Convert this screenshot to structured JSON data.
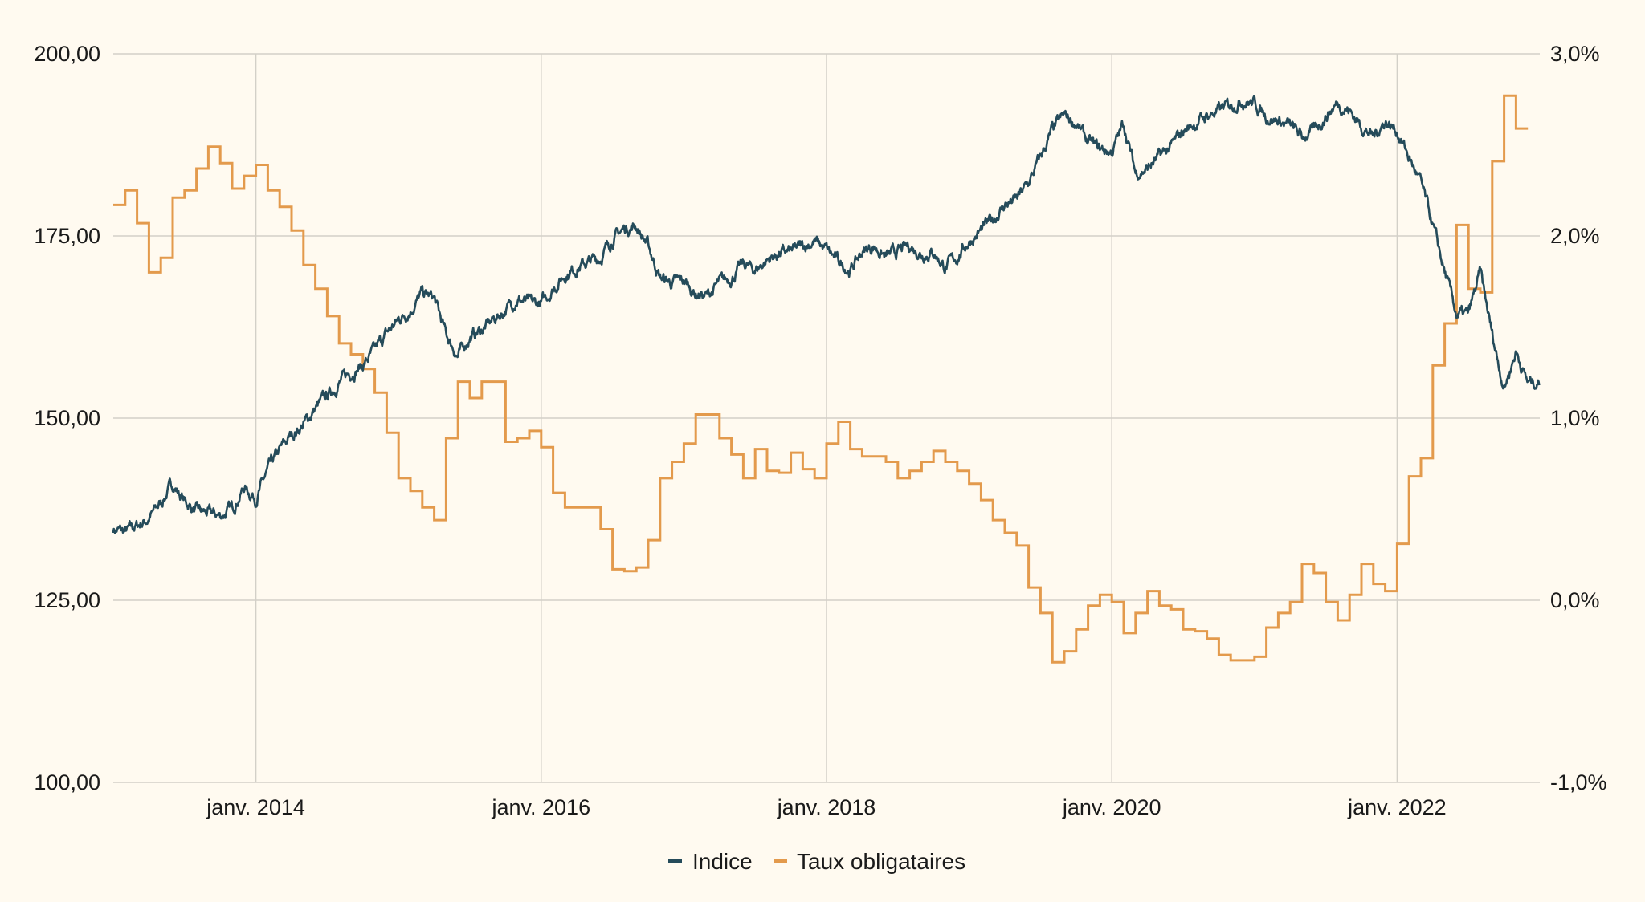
{
  "chart_data": {
    "type": "line",
    "title": "",
    "xlabel": "",
    "ylabel": "",
    "x_range": [
      "2013-01",
      "2023-01"
    ],
    "x_ticks": [
      {
        "date": "2014-01",
        "label": "janv. 2014"
      },
      {
        "date": "2016-01",
        "label": "janv. 2016"
      },
      {
        "date": "2018-01",
        "label": "janv. 2018"
      },
      {
        "date": "2020-01",
        "label": "janv. 2020"
      },
      {
        "date": "2022-01",
        "label": "janv. 2022"
      }
    ],
    "y_left": {
      "range": [
        100,
        200
      ],
      "ticks": [
        100,
        125,
        150,
        175,
        200
      ],
      "tick_labels": [
        "100,00",
        "125,00",
        "150,00",
        "175,00",
        "200,00"
      ]
    },
    "y_right": {
      "range": [
        -1,
        3
      ],
      "ticks": [
        -1,
        0,
        1,
        2,
        3
      ],
      "tick_labels": [
        "-1,0%",
        "0,0%",
        "1,0%",
        "2,0%",
        "3,0%"
      ]
    },
    "grid": true,
    "legend_position": "bottom-center",
    "background_color": "#fffaf0",
    "series": [
      {
        "name": "Indice",
        "axis": "left",
        "color": "#254b5a",
        "style": "line",
        "x": [
          "2013-01",
          "2013-02",
          "2013-03",
          "2013-04",
          "2013-05",
          "2013-06",
          "2013-07",
          "2013-08",
          "2013-09",
          "2013-10",
          "2013-11",
          "2013-12",
          "2014-01",
          "2014-02",
          "2014-03",
          "2014-04",
          "2014-05",
          "2014-06",
          "2014-07",
          "2014-08",
          "2014-09",
          "2014-10",
          "2014-11",
          "2014-12",
          "2015-01",
          "2015-02",
          "2015-03",
          "2015-04",
          "2015-05",
          "2015-06",
          "2015-07",
          "2015-08",
          "2015-09",
          "2015-10",
          "2015-11",
          "2015-12",
          "2016-01",
          "2016-02",
          "2016-03",
          "2016-04",
          "2016-05",
          "2016-06",
          "2016-07",
          "2016-08",
          "2016-09",
          "2016-10",
          "2016-11",
          "2016-12",
          "2017-01",
          "2017-02",
          "2017-03",
          "2017-04",
          "2017-05",
          "2017-06",
          "2017-07",
          "2017-08",
          "2017-09",
          "2017-10",
          "2017-11",
          "2017-12",
          "2018-01",
          "2018-02",
          "2018-03",
          "2018-04",
          "2018-05",
          "2018-06",
          "2018-07",
          "2018-08",
          "2018-09",
          "2018-10",
          "2018-11",
          "2018-12",
          "2019-01",
          "2019-02",
          "2019-03",
          "2019-04",
          "2019-05",
          "2019-06",
          "2019-07",
          "2019-08",
          "2019-09",
          "2019-10",
          "2019-11",
          "2019-12",
          "2020-01",
          "2020-02",
          "2020-03",
          "2020-04",
          "2020-05",
          "2020-06",
          "2020-07",
          "2020-08",
          "2020-09",
          "2020-10",
          "2020-11",
          "2020-12",
          "2021-01",
          "2021-02",
          "2021-03",
          "2021-04",
          "2021-05",
          "2021-06",
          "2021-07",
          "2021-08",
          "2021-09",
          "2021-10",
          "2021-11",
          "2021-12",
          "2022-01",
          "2022-02",
          "2022-03",
          "2022-04",
          "2022-05",
          "2022-06",
          "2022-07",
          "2022-08",
          "2022-09",
          "2022-10",
          "2022-11",
          "2022-12"
        ],
        "values": [
          134.8,
          134.3,
          135.2,
          136.2,
          138.4,
          141.0,
          138.6,
          137.2,
          136.9,
          136.6,
          137.6,
          140.5,
          139.0,
          142.7,
          145.5,
          147.7,
          149.1,
          151.3,
          153.0,
          154.9,
          156.3,
          157.3,
          159.2,
          161.6,
          163.5,
          164.9,
          167.1,
          166.4,
          161.4,
          158.5,
          161.1,
          162.1,
          163.5,
          164.9,
          166.4,
          165.7,
          165.7,
          167.8,
          169.7,
          170.7,
          171.4,
          172.1,
          174.6,
          176.0,
          176.4,
          173.6,
          169.3,
          168.5,
          168.8,
          167.1,
          166.8,
          168.5,
          169.3,
          171.1,
          170.3,
          171.7,
          172.6,
          172.8,
          173.6,
          174.3,
          173.1,
          171.4,
          170.3,
          172.8,
          173.6,
          172.1,
          172.8,
          173.6,
          172.6,
          172.8,
          170.7,
          172.1,
          174.3,
          175.7,
          177.2,
          179.3,
          180.0,
          182.2,
          185.8,
          189.4,
          191.5,
          190.4,
          187.9,
          186.9,
          186.5,
          190.4,
          183.6,
          184.3,
          185.8,
          187.2,
          189.4,
          190.4,
          191.5,
          192.2,
          193.0,
          193.7,
          193.2,
          191.5,
          190.8,
          190.1,
          188.6,
          189.4,
          191.5,
          193.2,
          192.2,
          190.1,
          188.6,
          190.8,
          189.4,
          185.8,
          182.2,
          176.4,
          170.0,
          164.2,
          164.2,
          170.0,
          161.4,
          154.2,
          159.2,
          154.9
        ]
      },
      {
        "name": "Taux obligataires",
        "axis": "right",
        "unit": "%",
        "color": "#e39a4c",
        "style": "step",
        "x_start": "2013-01",
        "frequency": "monthly",
        "values": [
          2.17,
          2.25,
          2.07,
          1.8,
          1.88,
          2.21,
          2.25,
          2.37,
          2.49,
          2.4,
          2.26,
          2.33,
          2.39,
          2.25,
          2.16,
          2.03,
          1.84,
          1.71,
          1.56,
          1.41,
          1.35,
          1.27,
          1.14,
          0.92,
          0.67,
          0.6,
          0.51,
          0.44,
          0.89,
          1.2,
          1.11,
          1.2,
          1.2,
          0.87,
          0.89,
          0.93,
          0.84,
          0.59,
          0.51,
          0.51,
          0.51,
          0.39,
          0.17,
          0.16,
          0.18,
          0.33,
          0.67,
          0.76,
          0.86,
          1.02,
          1.02,
          0.89,
          0.8,
          0.67,
          0.83,
          0.71,
          0.7,
          0.81,
          0.72,
          0.67,
          0.86,
          0.98,
          0.83,
          0.79,
          0.79,
          0.76,
          0.67,
          0.71,
          0.76,
          0.82,
          0.76,
          0.71,
          0.64,
          0.55,
          0.44,
          0.37,
          0.3,
          0.07,
          -0.07,
          -0.34,
          -0.28,
          -0.16,
          -0.03,
          0.03,
          -0.01,
          -0.18,
          -0.07,
          0.05,
          -0.03,
          -0.05,
          -0.16,
          -0.17,
          -0.21,
          -0.3,
          -0.33,
          -0.33,
          -0.31,
          -0.15,
          -0.07,
          -0.01,
          0.2,
          0.15,
          -0.01,
          -0.11,
          0.03,
          0.2,
          0.09,
          0.05,
          0.31,
          0.68,
          0.78,
          1.29,
          1.52,
          2.06,
          1.71,
          1.69,
          2.41,
          2.77,
          2.59
        ]
      }
    ]
  }
}
